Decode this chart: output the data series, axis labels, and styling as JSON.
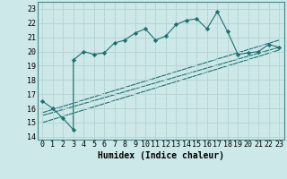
{
  "xlabel": "Humidex (Indice chaleur)",
  "xlim": [
    -0.5,
    23.5
  ],
  "ylim": [
    13.8,
    23.5
  ],
  "yticks": [
    14,
    15,
    16,
    17,
    18,
    19,
    20,
    21,
    22,
    23
  ],
  "xticks": [
    0,
    1,
    2,
    3,
    4,
    5,
    6,
    7,
    8,
    9,
    10,
    11,
    12,
    13,
    14,
    15,
    16,
    17,
    18,
    19,
    20,
    21,
    22,
    23
  ],
  "bg_color": "#cce8e8",
  "grid_major_color": "#b8d4d4",
  "grid_minor_color": "#d4e8e8",
  "line_color": "#1e7070",
  "line1_x": [
    0,
    1,
    2,
    3,
    3,
    4,
    5,
    6,
    7,
    8,
    9,
    10,
    11,
    12,
    13,
    14,
    15,
    16,
    17,
    18,
    19,
    20,
    21,
    22,
    23
  ],
  "line1_y": [
    16.5,
    16.0,
    15.3,
    14.5,
    19.4,
    20.0,
    19.8,
    19.9,
    20.6,
    20.8,
    21.3,
    21.6,
    20.8,
    21.1,
    21.9,
    22.2,
    22.3,
    21.6,
    22.8,
    21.4,
    19.8,
    19.9,
    20.0,
    20.5,
    20.3
  ],
  "line2_x": [
    0,
    23
  ],
  "line2_y": [
    15.5,
    20.3
  ],
  "line3_x": [
    0,
    23
  ],
  "line3_y": [
    15.0,
    20.1
  ],
  "line4_x": [
    0,
    23
  ],
  "line4_y": [
    15.7,
    20.8
  ],
  "tick_fontsize": 6.0,
  "xlabel_fontsize": 7.0
}
